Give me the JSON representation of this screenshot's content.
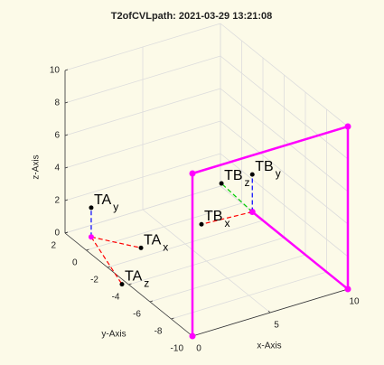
{
  "chart_data": {
    "type": "plot3",
    "title": "T2ofCVLpath: 2021-03-29 13:21:08",
    "xlabel": "x-Axis",
    "ylabel": "y-Axis",
    "zlabel": "z-Axis",
    "xlim": [
      0,
      10
    ],
    "ylim": [
      -10,
      2
    ],
    "zlim": [
      0,
      10
    ],
    "xticks": [
      0,
      5,
      10
    ],
    "yticks": [
      -10,
      -8,
      -6,
      -4,
      -2,
      0,
      2
    ],
    "zticks": [
      0,
      2,
      4,
      6,
      8,
      10
    ],
    "grid": true,
    "series": [
      {
        "color": "#ff00ff",
        "x": [
          0,
          0,
          10,
          10,
          10
        ],
        "y": [
          -10,
          -10,
          -10,
          -10,
          -1
        ],
        "z": [
          0,
          10,
          10,
          0,
          0
        ]
      }
    ],
    "frames": [
      {
        "name": "TA",
        "origin": [
          1,
          1,
          0
        ],
        "axes": [
          {
            "sub": "x",
            "color": "#ff0000",
            "end": [
              2.7,
              -1.2,
              0
            ]
          },
          {
            "sub": "y",
            "color": "#0000ff",
            "end": [
              1,
              1,
              1.8
            ]
          },
          {
            "sub": "z",
            "color": "#ff0000",
            "end": [
              -0.3,
              -3.8,
              0
            ]
          }
        ]
      },
      {
        "name": "TB",
        "origin": [
          10,
          -1,
          0
        ],
        "axes": [
          {
            "sub": "x",
            "color": "#ff0000",
            "end": [
              6.9,
              -0.75,
              0
            ]
          },
          {
            "sub": "y",
            "color": "#0000ff",
            "end": [
              10,
              -1,
              2.3
            ]
          },
          {
            "sub": "z",
            "color": "#00cc00",
            "end": [
              10.2,
              2.2,
              0
            ]
          }
        ]
      }
    ]
  }
}
